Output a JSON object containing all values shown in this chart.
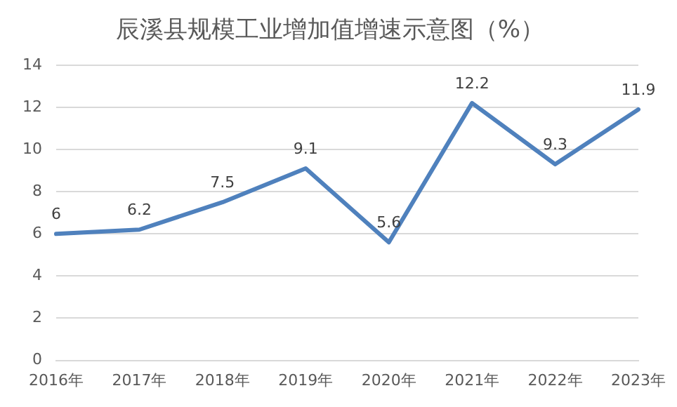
{
  "chart_data": {
    "type": "line",
    "title": "辰溪县规模工业增加值增速示意图（%）",
    "categories": [
      "2016年",
      "2017年",
      "2018年",
      "2019年",
      "2020年",
      "2021年",
      "2022年",
      "2023年"
    ],
    "series": [
      {
        "color": "#4f81bd",
        "values": [
          6,
          6.2,
          7.5,
          9.1,
          5.6,
          12.2,
          9.3,
          11.9
        ]
      }
    ],
    "ylim": [
      0,
      14
    ],
    "yticks": [
      0,
      2,
      4,
      6,
      8,
      10,
      12,
      14
    ],
    "grid": "y",
    "legend": false,
    "marker": "none",
    "line_style": "solid",
    "data_labels": true
  }
}
